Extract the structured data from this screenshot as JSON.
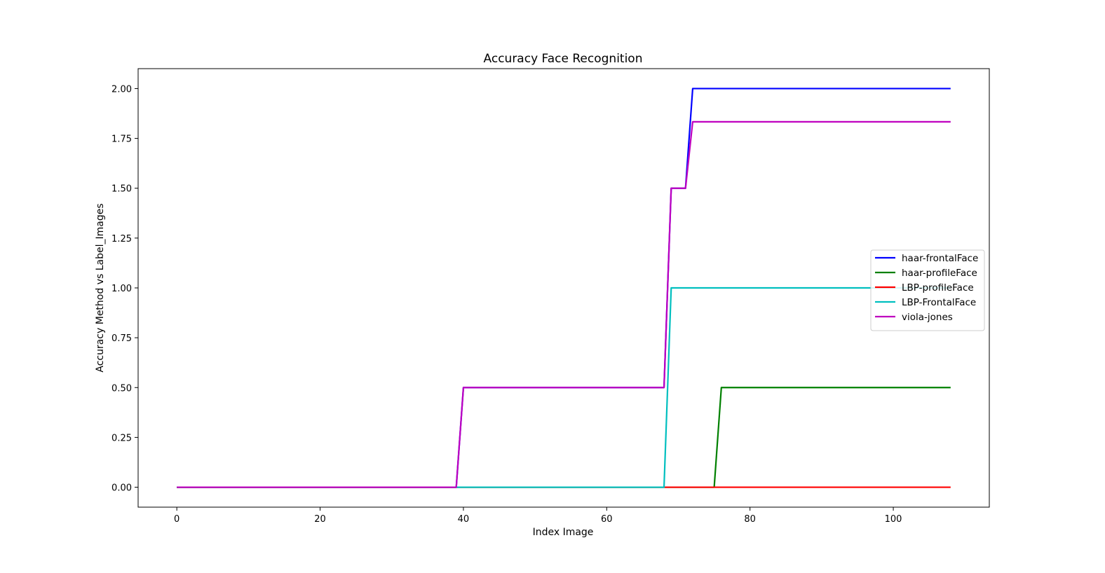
{
  "chart_data": {
    "type": "line",
    "title": "Accuracy Face Recognition",
    "xlabel": "Index Image",
    "ylabel": "Accuracy Method vs Label_Images",
    "xlim": [
      -5.4,
      113.4
    ],
    "ylim": [
      -0.1,
      2.1
    ],
    "xticks": [
      0,
      20,
      40,
      60,
      80,
      100
    ],
    "yticks": [
      0.0,
      0.25,
      0.5,
      0.75,
      1.0,
      1.25,
      1.5,
      1.75,
      2.0
    ],
    "ytick_labels": [
      "0.00",
      "0.25",
      "0.50",
      "0.75",
      "1.00",
      "1.25",
      "1.50",
      "1.75",
      "2.00"
    ],
    "grid": false,
    "legend_position": "center right",
    "series": [
      {
        "name": "haar-frontalFace",
        "color": "#0000ff",
        "points": [
          [
            0,
            0
          ],
          [
            39,
            0
          ],
          [
            40,
            0.5
          ],
          [
            68,
            0.5
          ],
          [
            69,
            1.5
          ],
          [
            71,
            1.5
          ],
          [
            72,
            2.0
          ],
          [
            108,
            2.0
          ]
        ]
      },
      {
        "name": "haar-profileFace",
        "color": "#008000",
        "points": [
          [
            0,
            0
          ],
          [
            75,
            0
          ],
          [
            76,
            0.5
          ],
          [
            108,
            0.5
          ]
        ]
      },
      {
        "name": "LBP-profileFace",
        "color": "#ff0000",
        "points": [
          [
            0,
            0
          ],
          [
            108,
            0
          ]
        ]
      },
      {
        "name": "LBP-FrontalFace",
        "color": "#00bfbf",
        "points": [
          [
            0,
            0
          ],
          [
            68,
            0
          ],
          [
            69,
            1.0
          ],
          [
            108,
            1.0
          ]
        ]
      },
      {
        "name": "viola-jones",
        "color": "#bf00bf",
        "points": [
          [
            0,
            0
          ],
          [
            39,
            0
          ],
          [
            40,
            0.5
          ],
          [
            68,
            0.5
          ],
          [
            69,
            1.5
          ],
          [
            71,
            1.5
          ],
          [
            72,
            1.8333
          ],
          [
            108,
            1.8333
          ]
        ]
      }
    ]
  }
}
